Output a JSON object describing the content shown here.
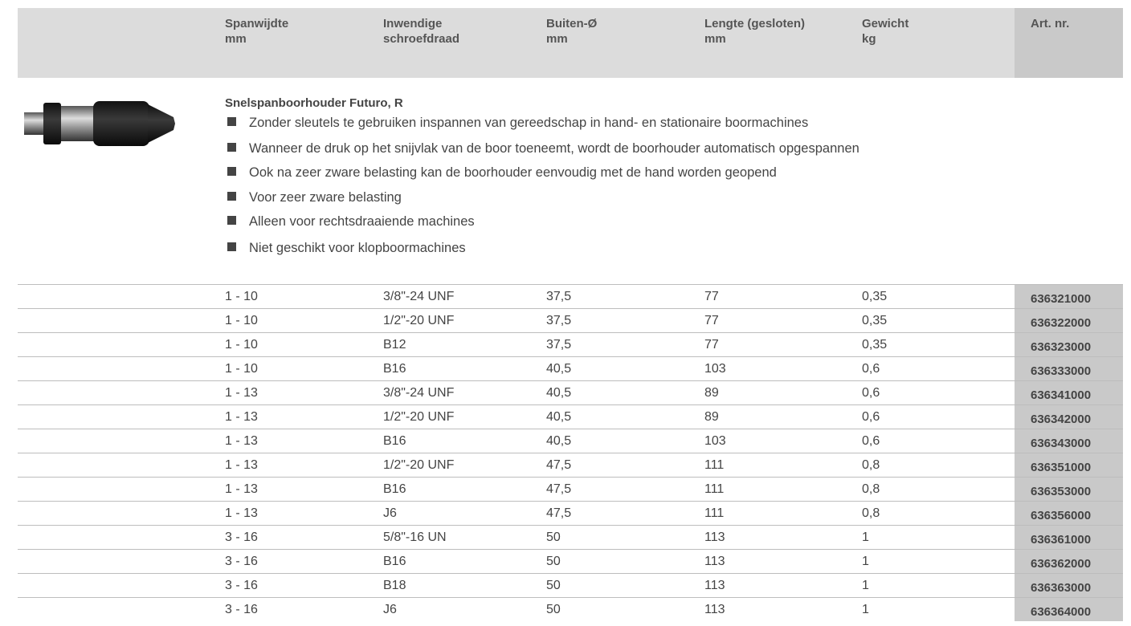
{
  "header": {
    "columns": [
      [
        "Spanwijdte",
        "mm"
      ],
      [
        "Inwendige",
        "schroefdraad"
      ],
      [
        "Buiten-Ø",
        "mm"
      ],
      [
        "Lengte (gesloten)",
        "mm"
      ],
      [
        "Gewicht",
        "kg"
      ],
      [
        "Art. nr."
      ]
    ]
  },
  "product": {
    "title": "Snelspanboorhouder Futuro, R",
    "bullets": [
      "Zonder sleutels te gebruiken inspannen van gereedschap in hand- en stationaire boormachines",
      "Wanneer de druk op het snijvlak van de boor toeneemt, wordt de boorhouder automatisch opgespannen",
      "Ook na zeer zware belasting kan de boorhouder eenvoudig met de hand worden geopend",
      "Voor zeer zware belasting",
      "Alleen voor rechtsdraaiende machines",
      "Niet geschikt voor klopboormachines"
    ]
  },
  "table": {
    "rows": [
      [
        "1 - 10",
        "3/8\"-24 UNF",
        "37,5",
        "77",
        "0,35",
        "636321000"
      ],
      [
        "1 - 10",
        "1/2\"-20 UNF",
        "37,5",
        "77",
        "0,35",
        "636322000"
      ],
      [
        "1 - 10",
        "B12",
        "37,5",
        "77",
        "0,35",
        "636323000"
      ],
      [
        "1 - 10",
        "B16",
        "40,5",
        "103",
        "0,6",
        "636333000"
      ],
      [
        "1 - 13",
        "3/8\"-24 UNF",
        "40,5",
        "89",
        "0,6",
        "636341000"
      ],
      [
        "1 - 13",
        "1/2\"-20 UNF",
        "40,5",
        "89",
        "0,6",
        "636342000"
      ],
      [
        "1 - 13",
        "B16",
        "40,5",
        "103",
        "0,6",
        "636343000"
      ],
      [
        "1 - 13",
        "1/2\"-20 UNF",
        "47,5",
        "111",
        "0,8",
        "636351000"
      ],
      [
        "1 - 13",
        "B16",
        "47,5",
        "111",
        "0,8",
        "636353000"
      ],
      [
        "1 - 13",
        "J6",
        "47,5",
        "111",
        "0,8",
        "636356000"
      ],
      [
        "3 - 16",
        "5/8\"-16 UN",
        "50",
        "113",
        "1",
        "636361000"
      ],
      [
        "3 - 16",
        "B16",
        "50",
        "113",
        "1",
        "636362000"
      ],
      [
        "3 - 16",
        "B18",
        "50",
        "113",
        "1",
        "636363000"
      ],
      [
        "3 - 16",
        "J6",
        "50",
        "113",
        "1",
        "636364000"
      ]
    ]
  }
}
